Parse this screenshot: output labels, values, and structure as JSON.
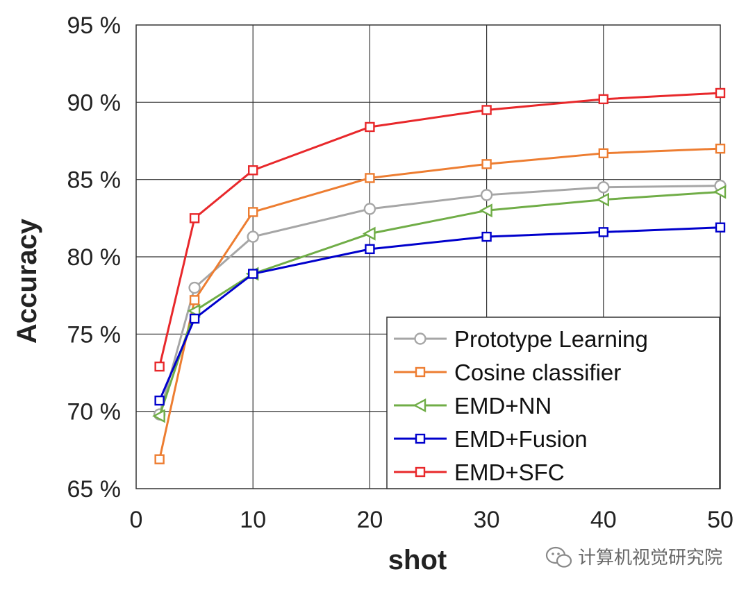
{
  "chart_data": {
    "type": "line",
    "title": "",
    "xlabel": "shot",
    "ylabel": "Accuracy",
    "xlim": [
      0,
      50
    ],
    "ylim": [
      65,
      95
    ],
    "xticks": [
      0,
      10,
      20,
      30,
      40,
      50
    ],
    "yticks": [
      65,
      70,
      75,
      80,
      85,
      90,
      95
    ],
    "ytick_labels": [
      "65 %",
      "70 %",
      "75 %",
      "80 %",
      "85 %",
      "90 %",
      "95 %"
    ],
    "xtick_labels": [
      "0",
      "10",
      "20",
      "30",
      "40",
      "50"
    ],
    "grid": true,
    "legend_position": "bottom-right",
    "x": [
      2,
      5,
      10,
      20,
      30,
      40,
      50
    ],
    "series": [
      {
        "name": "Prototype Learning",
        "color": "#a6a6a6",
        "marker": "circle",
        "values": [
          69.8,
          78.0,
          81.3,
          83.1,
          84.0,
          84.5,
          84.6
        ]
      },
      {
        "name": "Cosine classifier",
        "color": "#ed7d31",
        "marker": "square",
        "values": [
          66.9,
          77.2,
          82.9,
          85.1,
          86.0,
          86.7,
          87.0
        ]
      },
      {
        "name": "EMD+NN",
        "color": "#70ad47",
        "marker": "triangle",
        "values": [
          69.7,
          76.5,
          78.9,
          81.5,
          83.0,
          83.7,
          84.2
        ]
      },
      {
        "name": "EMD+Fusion",
        "color": "#0000cc",
        "marker": "square",
        "values": [
          70.7,
          76.0,
          78.9,
          80.5,
          81.3,
          81.6,
          81.9
        ]
      },
      {
        "name": "EMD+SFC",
        "color": "#e8282b",
        "marker": "square",
        "values": [
          72.9,
          82.5,
          85.6,
          88.4,
          89.5,
          90.2,
          90.6
        ]
      }
    ]
  },
  "watermark": {
    "text": "计算机视觉研究院",
    "icon": "wechat-icon"
  }
}
